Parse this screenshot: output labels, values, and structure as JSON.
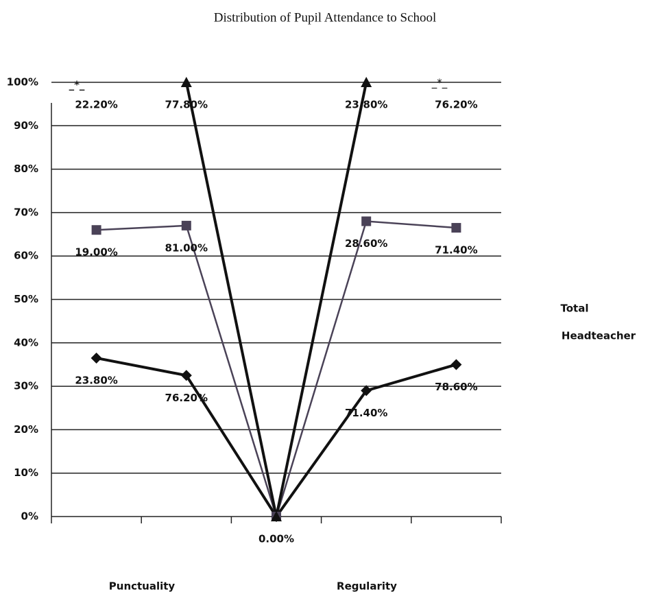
{
  "chart_data": {
    "type": "line",
    "title": "Distribution of Pupil Attendance to School",
    "categories": [
      null,
      null,
      null,
      null,
      null
    ],
    "group_labels": [
      "Punctuality",
      "Regularity"
    ],
    "annotations": [
      "_*_",
      "_*_"
    ],
    "ylim": [
      0,
      100
    ],
    "yticks": [
      {
        "value": 0,
        "label": "0%"
      },
      {
        "value": 10,
        "label": "10%"
      },
      {
        "value": 20,
        "label": "20%"
      },
      {
        "value": 30,
        "label": "30%"
      },
      {
        "value": 40,
        "label": "40%"
      },
      {
        "value": 50,
        "label": "50%"
      },
      {
        "value": 60,
        "label": "60%"
      },
      {
        "value": 70,
        "label": "70%"
      },
      {
        "value": 80,
        "label": "80%"
      },
      {
        "value": 90,
        "label": "90%"
      },
      {
        "value": 100,
        "label": "100%"
      }
    ],
    "grid": true,
    "series": [
      {
        "name": "Total",
        "color": "#111111",
        "marker": "diamond",
        "values": [
          36.5,
          32.5,
          0,
          29,
          35
        ],
        "labels": [
          "23.80%",
          "76.20%",
          "0.00%",
          "71.40%",
          "78.60%"
        ]
      },
      {
        "name": "Headteacher",
        "color": "#4a4257",
        "marker": "square",
        "values": [
          66,
          67,
          0,
          68,
          66.5
        ],
        "labels": [
          "19.00%",
          "81.00%",
          null,
          "28.60%",
          "71.40%"
        ]
      },
      {
        "color": "#111111",
        "marker": "triangle",
        "values": [
          null,
          100,
          0,
          100,
          null
        ],
        "labels": [
          "22.20%",
          "77.80%",
          null,
          "23.80%",
          "76.20%"
        ]
      }
    ]
  }
}
